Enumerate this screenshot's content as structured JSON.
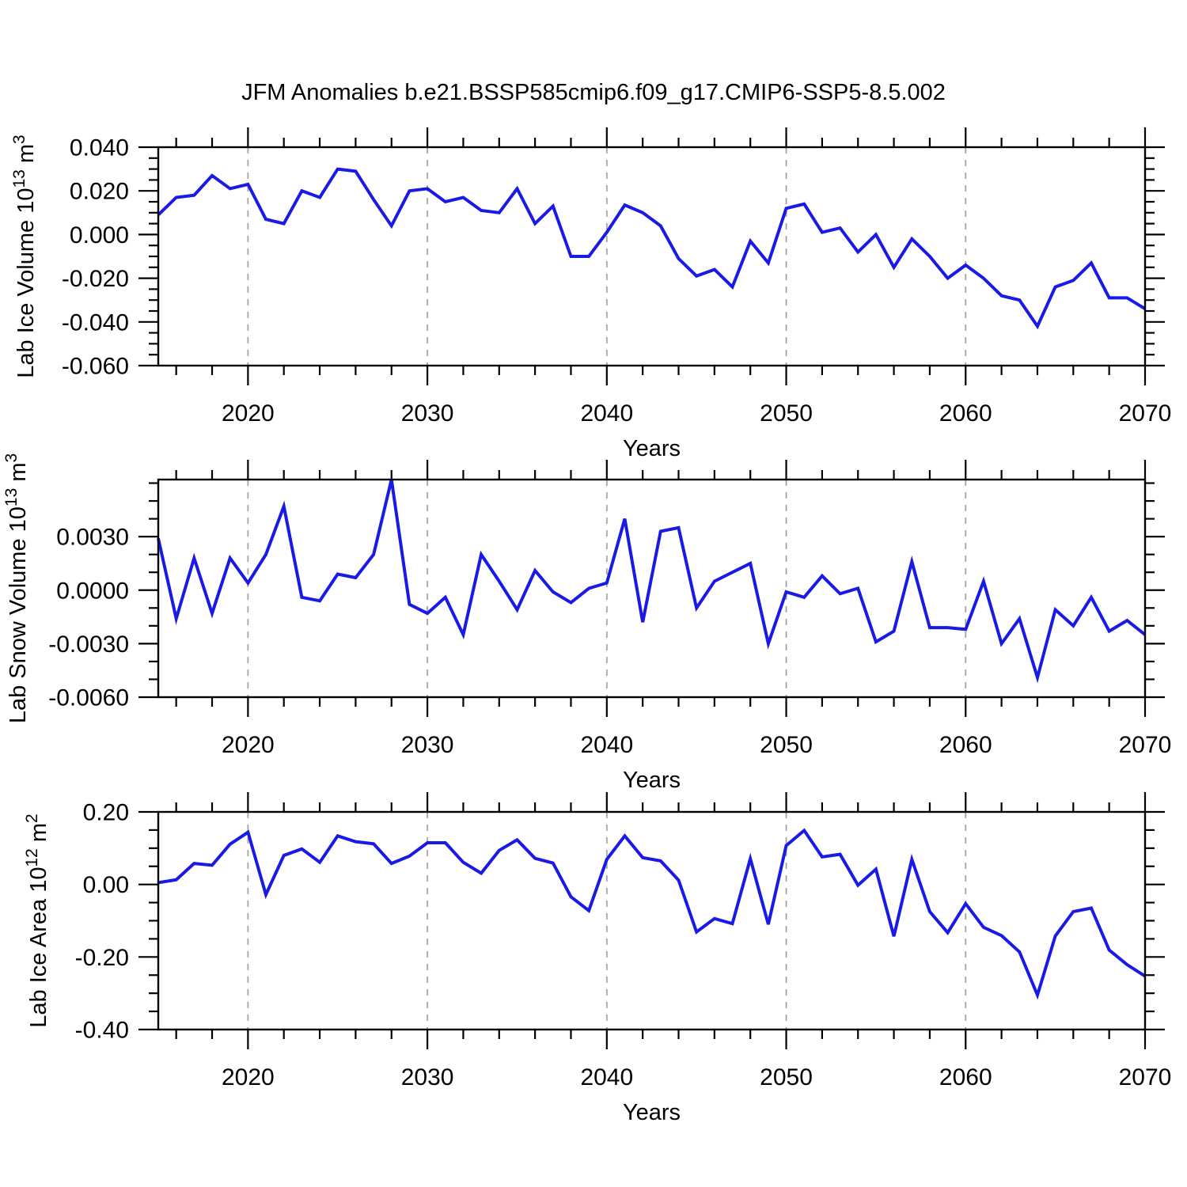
{
  "title": "JFM Anomalies b.e21.BSSP585cmip6.f09_g17.CMIP6-SSP5-8.5.002",
  "style": {
    "line_color": "#1a1ae6",
    "grid_color": "#a3a3a3",
    "frame_color": "#000000",
    "text_color": "#000000",
    "background": "#ffffff"
  },
  "chart_data": [
    {
      "type": "line",
      "id": "lab-ice-volume",
      "title": "",
      "xlabel": "Years",
      "ylabel": "Lab Ice Volume 10^13 m^3",
      "ylabel_rich": [
        {
          "t": "Lab Ice Volume 10"
        },
        {
          "t": "13",
          "sup": true
        },
        {
          "t": " m"
        },
        {
          "t": "3",
          "sup": true
        }
      ],
      "xlim": [
        2015,
        2070
      ],
      "ylim": [
        -0.06,
        0.04
      ],
      "x_start_year": 2015,
      "x_major_ticks": [
        2020,
        2030,
        2040,
        2050,
        2060,
        2070
      ],
      "x_minor_step": 2,
      "x_gridlines": [
        2020,
        2030,
        2040,
        2050,
        2060
      ],
      "y_major_ticks": [
        0.04,
        0.02,
        0.0,
        -0.02,
        -0.04,
        -0.06
      ],
      "y_tick_labels": [
        "0.040",
        "0.020",
        "0.000",
        "-0.020",
        "-0.040",
        "-0.060"
      ],
      "y_minor_step": 0.005,
      "grid": "vertical-dashed",
      "legend": "none",
      "values": [
        0.009,
        0.017,
        0.018,
        0.027,
        0.021,
        0.023,
        0.007,
        0.005,
        0.02,
        0.017,
        0.03,
        0.029,
        0.016,
        0.004,
        0.02,
        0.021,
        0.015,
        0.017,
        0.011,
        0.01,
        0.021,
        0.005,
        0.013,
        -0.01,
        -0.01,
        0.001,
        0.0135,
        0.01,
        0.004,
        -0.011,
        -0.019,
        -0.016,
        -0.024,
        -0.003,
        -0.013,
        0.012,
        0.014,
        0.001,
        0.003,
        -0.008,
        0.0,
        -0.015,
        -0.002,
        -0.01,
        -0.02,
        -0.014,
        -0.02,
        -0.028,
        -0.03,
        -0.042,
        -0.024,
        -0.021,
        -0.013,
        -0.029,
        -0.029,
        -0.034
      ]
    },
    {
      "type": "line",
      "id": "lab-snow-volume",
      "title": "",
      "xlabel": "Years",
      "ylabel": "Lab Snow Volume 10^13 m^3",
      "ylabel_rich": [
        {
          "t": "Lab Snow Volume 10"
        },
        {
          "t": "13",
          "sup": true
        },
        {
          "t": " m"
        },
        {
          "t": "3",
          "sup": true
        }
      ],
      "xlim": [
        2015,
        2070
      ],
      "ylim": [
        -0.006,
        0.0062
      ],
      "x_start_year": 2015,
      "x_major_ticks": [
        2020,
        2030,
        2040,
        2050,
        2060,
        2070
      ],
      "x_minor_step": 2,
      "x_gridlines": [
        2020,
        2030,
        2040,
        2050,
        2060
      ],
      "y_major_ticks": [
        0.003,
        0.0,
        -0.003,
        -0.006
      ],
      "y_tick_labels": [
        "0.0030",
        "0.0000",
        "-0.0030",
        "-0.0060"
      ],
      "y_minor_step": 0.001,
      "grid": "vertical-dashed",
      "legend": "none",
      "values": [
        0.0029,
        -0.0016,
        0.0018,
        -0.0013,
        0.0018,
        0.0004,
        0.002,
        0.0047,
        -0.0004,
        -0.0006,
        0.0009,
        0.0007,
        0.002,
        0.0062,
        -0.0008,
        -0.0013,
        -0.0004,
        -0.0025,
        0.002,
        0.0005,
        -0.0011,
        0.0011,
        -0.0001,
        -0.0007,
        0.0001,
        0.0004,
        0.004,
        -0.0018,
        0.0033,
        0.0035,
        -0.001,
        0.0005,
        0.001,
        0.0015,
        -0.003,
        -0.0001,
        -0.0004,
        0.0008,
        -0.0002,
        0.0001,
        -0.0029,
        -0.0023,
        0.0016,
        -0.0021,
        -0.0021,
        -0.0022,
        0.0005,
        -0.003,
        -0.0016,
        -0.0049,
        -0.0011,
        -0.002,
        -0.0004,
        -0.0023,
        -0.0017,
        -0.0025
      ]
    },
    {
      "type": "line",
      "id": "lab-ice-area",
      "title": "",
      "xlabel": "Years",
      "ylabel": "Lab Ice Area 10^12 m^2",
      "ylabel_rich": [
        {
          "t": "Lab Ice Area 10"
        },
        {
          "t": "12",
          "sup": true
        },
        {
          "t": " m"
        },
        {
          "t": "2",
          "sup": true
        }
      ],
      "xlim": [
        2015,
        2070
      ],
      "ylim": [
        -0.4,
        0.2
      ],
      "x_start_year": 2015,
      "x_major_ticks": [
        2020,
        2030,
        2040,
        2050,
        2060,
        2070
      ],
      "x_minor_step": 2,
      "x_gridlines": [
        2020,
        2030,
        2040,
        2050,
        2060
      ],
      "y_major_ticks": [
        0.2,
        0.0,
        -0.2,
        -0.4
      ],
      "y_tick_labels": [
        "0.20",
        "0.00",
        "-0.20",
        "-0.40"
      ],
      "y_minor_step": 0.05,
      "grid": "vertical-dashed",
      "legend": "none",
      "values": [
        0.005,
        0.013,
        0.058,
        0.053,
        0.111,
        0.144,
        -0.028,
        0.08,
        0.098,
        0.061,
        0.134,
        0.118,
        0.112,
        0.058,
        0.078,
        0.115,
        0.115,
        0.061,
        0.031,
        0.094,
        0.123,
        0.072,
        0.059,
        -0.034,
        -0.072,
        0.069,
        0.134,
        0.074,
        0.065,
        0.012,
        -0.131,
        -0.094,
        -0.108,
        0.071,
        -0.11,
        0.107,
        0.149,
        0.076,
        0.083,
        -0.002,
        0.042,
        -0.143,
        0.069,
        -0.075,
        -0.133,
        -0.053,
        -0.118,
        -0.141,
        -0.186,
        -0.305,
        -0.142,
        -0.075,
        -0.065,
        -0.181,
        -0.221,
        -0.253
      ]
    }
  ]
}
